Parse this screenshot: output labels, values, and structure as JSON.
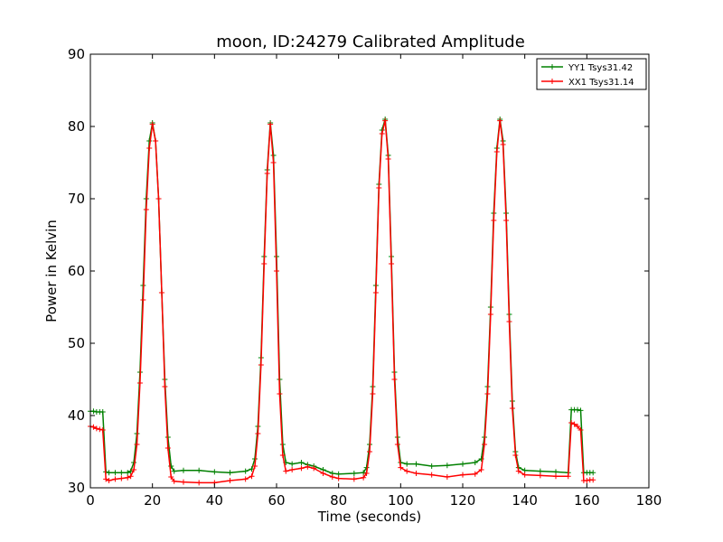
{
  "chart_data": {
    "type": "line",
    "title": "moon, ID:24279 Calibrated Amplitude",
    "xlabel": "Time (seconds)",
    "ylabel": "Power in Kelvin",
    "xlim": [
      0,
      180
    ],
    "ylim": [
      30,
      90
    ],
    "xticks": [
      0,
      20,
      40,
      60,
      80,
      100,
      120,
      140,
      160,
      180
    ],
    "yticks": [
      30,
      40,
      50,
      60,
      70,
      80,
      90
    ],
    "grid": false,
    "legend_position": "top-right",
    "marker": "+",
    "series": [
      {
        "name": "YY1 Tsys31.42",
        "color": "#008000",
        "points": [
          [
            0,
            40.6
          ],
          [
            1,
            40.6
          ],
          [
            2,
            40.5
          ],
          [
            3,
            40.5
          ],
          [
            4,
            40.5
          ],
          [
            5,
            32.2
          ],
          [
            6,
            32.1
          ],
          [
            8,
            32.1
          ],
          [
            10,
            32.1
          ],
          [
            12,
            32.1
          ],
          [
            13,
            32.3
          ],
          [
            14,
            33.5
          ],
          [
            15,
            37.5
          ],
          [
            16,
            46.0
          ],
          [
            17,
            58.0
          ],
          [
            18,
            70.0
          ],
          [
            19,
            78.0
          ],
          [
            20,
            80.5
          ],
          [
            21,
            78.0
          ],
          [
            22,
            70.0
          ],
          [
            23,
            57.0
          ],
          [
            24,
            45.0
          ],
          [
            25,
            37.0
          ],
          [
            26,
            33.0
          ],
          [
            27,
            32.3
          ],
          [
            30,
            32.4
          ],
          [
            35,
            32.4
          ],
          [
            40,
            32.2
          ],
          [
            45,
            32.1
          ],
          [
            50,
            32.3
          ],
          [
            52,
            32.6
          ],
          [
            53,
            34.0
          ],
          [
            54,
            38.5
          ],
          [
            55,
            48.0
          ],
          [
            56,
            62.0
          ],
          [
            57,
            74.0
          ],
          [
            58,
            80.5
          ],
          [
            59,
            76.0
          ],
          [
            60,
            62.0
          ],
          [
            61,
            45.0
          ],
          [
            62,
            36.0
          ],
          [
            63,
            33.5
          ],
          [
            65,
            33.3
          ],
          [
            68,
            33.5
          ],
          [
            70,
            33.2
          ],
          [
            72,
            33.0
          ],
          [
            75,
            32.5
          ],
          [
            78,
            32.0
          ],
          [
            80,
            31.9
          ],
          [
            85,
            32.0
          ],
          [
            88,
            32.1
          ],
          [
            89,
            32.8
          ],
          [
            90,
            36.0
          ],
          [
            91,
            44.0
          ],
          [
            92,
            58.0
          ],
          [
            93,
            72.0
          ],
          [
            94,
            79.5
          ],
          [
            95,
            81.0
          ],
          [
            96,
            76.0
          ],
          [
            97,
            62.0
          ],
          [
            98,
            46.0
          ],
          [
            99,
            37.0
          ],
          [
            100,
            33.5
          ],
          [
            102,
            33.3
          ],
          [
            105,
            33.3
          ],
          [
            110,
            33.0
          ],
          [
            115,
            33.1
          ],
          [
            120,
            33.3
          ],
          [
            124,
            33.5
          ],
          [
            126,
            34.0
          ],
          [
            127,
            37.0
          ],
          [
            128,
            44.0
          ],
          [
            129,
            55.0
          ],
          [
            130,
            68.0
          ],
          [
            131,
            77.0
          ],
          [
            132,
            81.0
          ],
          [
            133,
            78.0
          ],
          [
            134,
            68.0
          ],
          [
            135,
            54.0
          ],
          [
            136,
            42.0
          ],
          [
            137,
            35.0
          ],
          [
            138,
            32.8
          ],
          [
            140,
            32.4
          ],
          [
            145,
            32.3
          ],
          [
            150,
            32.2
          ],
          [
            154,
            32.1
          ],
          [
            155,
            40.8
          ],
          [
            156,
            40.8
          ],
          [
            157,
            40.8
          ],
          [
            158,
            40.7
          ],
          [
            159,
            32.1
          ],
          [
            160,
            32.1
          ],
          [
            161,
            32.1
          ],
          [
            162,
            32.1
          ]
        ]
      },
      {
        "name": "XX1 Tsys31.14",
        "color": "#ff0000",
        "points": [
          [
            0,
            38.5
          ],
          [
            1,
            38.4
          ],
          [
            2,
            38.2
          ],
          [
            3,
            38.1
          ],
          [
            4,
            38.0
          ],
          [
            5,
            31.2
          ],
          [
            6,
            31.0
          ],
          [
            8,
            31.2
          ],
          [
            10,
            31.3
          ],
          [
            12,
            31.4
          ],
          [
            13,
            31.6
          ],
          [
            14,
            32.5
          ],
          [
            15,
            36.0
          ],
          [
            16,
            44.5
          ],
          [
            17,
            56.0
          ],
          [
            18,
            68.5
          ],
          [
            19,
            77.0
          ],
          [
            20,
            80.3
          ],
          [
            21,
            78.0
          ],
          [
            22,
            70.0
          ],
          [
            23,
            57.0
          ],
          [
            24,
            44.0
          ],
          [
            25,
            35.5
          ],
          [
            26,
            31.5
          ],
          [
            27,
            30.9
          ],
          [
            30,
            30.8
          ],
          [
            35,
            30.7
          ],
          [
            40,
            30.7
          ],
          [
            45,
            31.0
          ],
          [
            50,
            31.2
          ],
          [
            52,
            31.6
          ],
          [
            53,
            33.0
          ],
          [
            54,
            37.5
          ],
          [
            55,
            47.0
          ],
          [
            56,
            61.0
          ],
          [
            57,
            73.5
          ],
          [
            58,
            80.3
          ],
          [
            59,
            75.0
          ],
          [
            60,
            60.0
          ],
          [
            61,
            43.0
          ],
          [
            62,
            34.5
          ],
          [
            63,
            32.3
          ],
          [
            65,
            32.5
          ],
          [
            68,
            32.7
          ],
          [
            70,
            32.9
          ],
          [
            72,
            32.7
          ],
          [
            75,
            32.0
          ],
          [
            78,
            31.5
          ],
          [
            80,
            31.3
          ],
          [
            85,
            31.2
          ],
          [
            88,
            31.4
          ],
          [
            89,
            32.0
          ],
          [
            90,
            35.0
          ],
          [
            91,
            43.0
          ],
          [
            92,
            57.0
          ],
          [
            93,
            71.5
          ],
          [
            94,
            79.0
          ],
          [
            95,
            80.8
          ],
          [
            96,
            75.5
          ],
          [
            97,
            61.0
          ],
          [
            98,
            45.0
          ],
          [
            99,
            36.0
          ],
          [
            100,
            32.8
          ],
          [
            102,
            32.3
          ],
          [
            105,
            32.0
          ],
          [
            110,
            31.8
          ],
          [
            115,
            31.5
          ],
          [
            120,
            31.8
          ],
          [
            124,
            31.9
          ],
          [
            126,
            32.5
          ],
          [
            127,
            36.0
          ],
          [
            128,
            43.0
          ],
          [
            129,
            54.0
          ],
          [
            130,
            67.0
          ],
          [
            131,
            76.5
          ],
          [
            132,
            80.8
          ],
          [
            133,
            77.5
          ],
          [
            134,
            67.0
          ],
          [
            135,
            53.0
          ],
          [
            136,
            41.0
          ],
          [
            137,
            34.5
          ],
          [
            138,
            32.3
          ],
          [
            140,
            31.8
          ],
          [
            145,
            31.7
          ],
          [
            150,
            31.6
          ],
          [
            154,
            31.6
          ],
          [
            155,
            39.0
          ],
          [
            156,
            38.8
          ],
          [
            157,
            38.5
          ],
          [
            158,
            38.0
          ],
          [
            159,
            31.0
          ],
          [
            160,
            31.0
          ],
          [
            161,
            31.1
          ],
          [
            162,
            31.1
          ]
        ]
      }
    ]
  }
}
